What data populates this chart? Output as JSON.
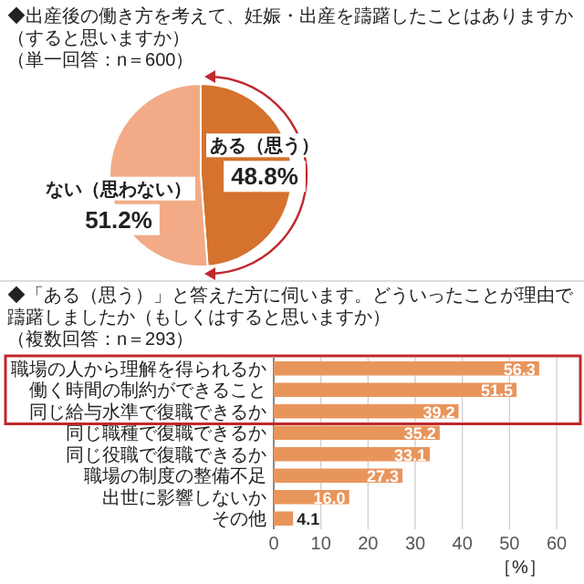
{
  "chart_data": [
    {
      "type": "pie",
      "title": "◆出産後の働き方を考えて、妊娠・出産を躊躇したことはありますか（すると思いますか）",
      "subtitle": "（単一回答：n＝600）",
      "categories": [
        "ある（思う）",
        "ない（思わない）"
      ],
      "values": [
        48.8,
        51.2
      ],
      "colors": [
        "#d4722e",
        "#f2ab86"
      ],
      "value_labels": [
        "48.8%",
        "51.2%"
      ]
    },
    {
      "type": "bar",
      "orientation": "horizontal",
      "title": "◆「ある（思う）」と答えた方に伺います。どういったことが理由で躊躇しましたか（もしくはすると思いますか）",
      "subtitle": "（複数回答：n＝293）",
      "categories": [
        "職場の人から理解を得られるか",
        "働く時間の制約ができること",
        "同じ給与水準で復職できるか",
        "同じ職種で復職できるか",
        "同じ役職で復職できるか",
        "職場の制度の整備不足",
        "出世に影響しないか",
        "その他"
      ],
      "values": [
        56.3,
        51.5,
        39.2,
        35.2,
        33.1,
        27.3,
        16.0,
        4.1
      ],
      "color": "#e8955c",
      "value_labels": [
        "56.3",
        "51.5",
        "39.2",
        "35.2",
        "33.1",
        "27.3",
        "16.0",
        "4.1"
      ],
      "xlim": [
        0,
        60
      ],
      "xticks": [
        0,
        10,
        20,
        30,
        40,
        50,
        60
      ],
      "xlabel": "［%］",
      "grid": "x"
    }
  ]
}
